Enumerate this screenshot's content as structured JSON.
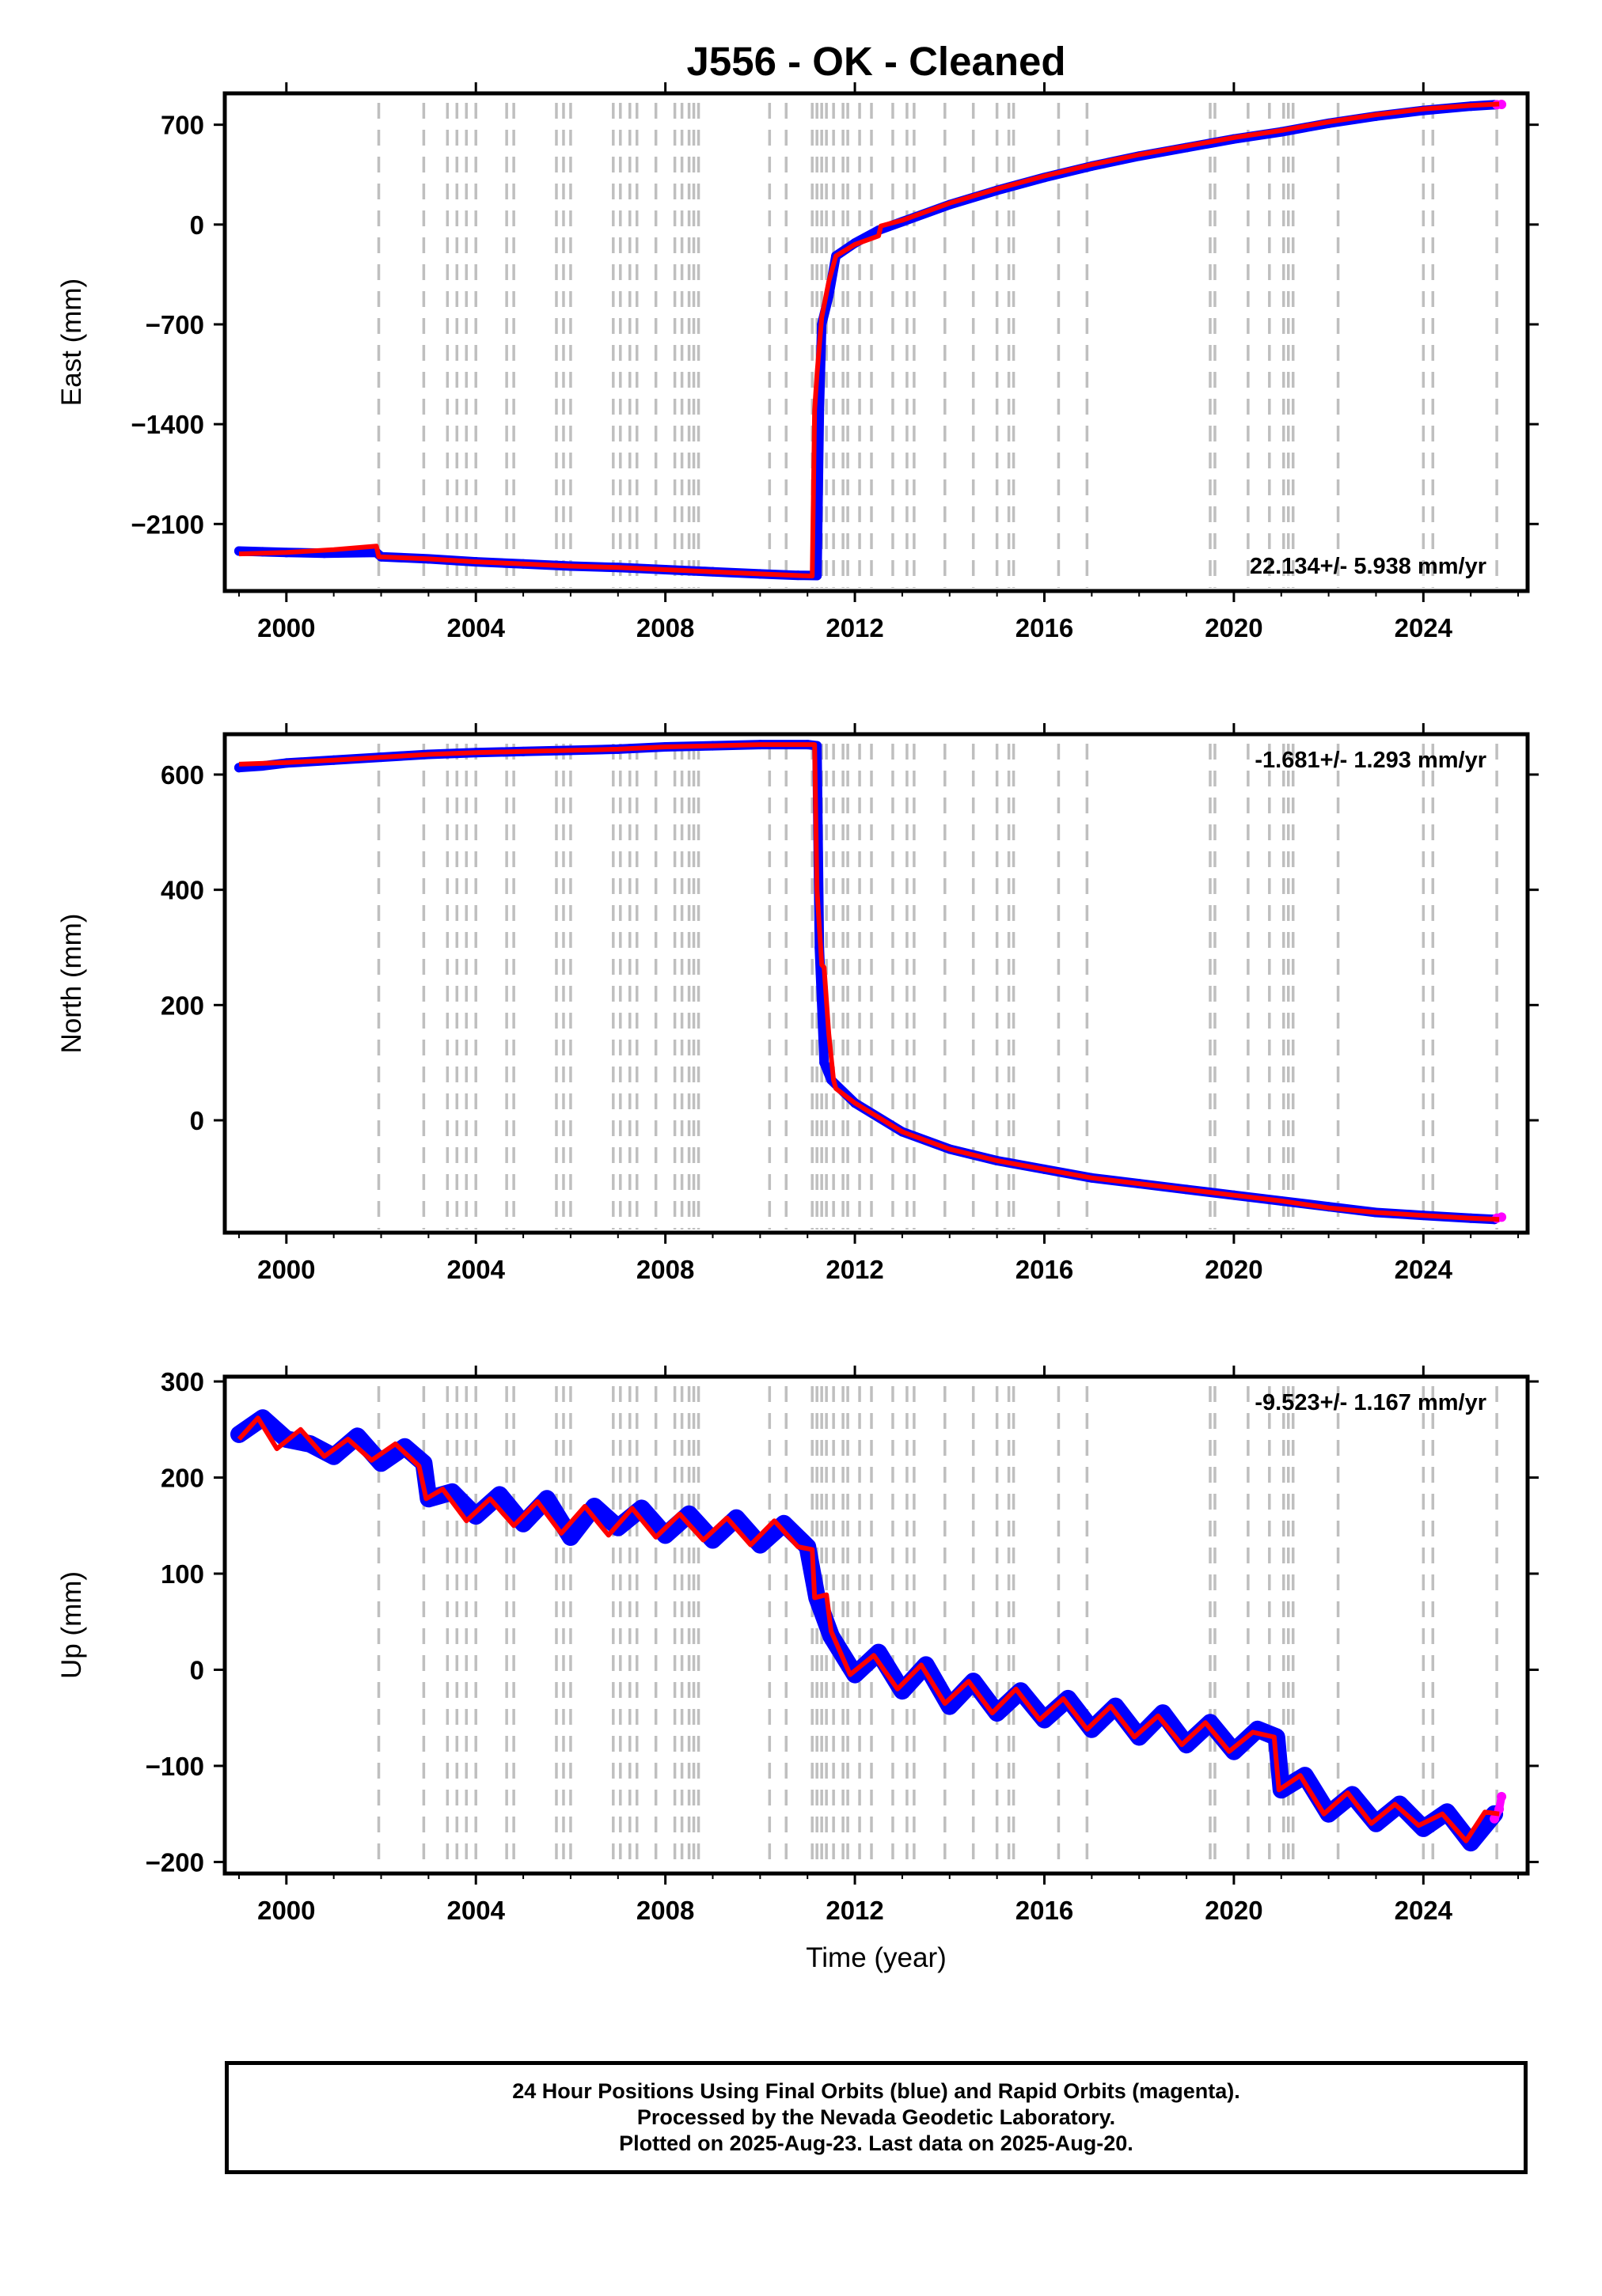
{
  "title": "J556  - OK - Cleaned",
  "footer": {
    "line1": "24 Hour Positions Using Final Orbits (blue) and Rapid Orbits (magenta).",
    "line2": "Processed by the Nevada Geodetic Laboratory.",
    "line3": "Plotted on 2025-Aug-23. Last data on 2025-Aug-20."
  },
  "colors": {
    "final_orbits": "#0000ff",
    "rapid_orbits": "#ff00ff",
    "model_fit": "#ff0000",
    "event_lines": "#bfbfbf",
    "frame": "#000000"
  },
  "chart_data": [
    {
      "type": "scatter",
      "ylabel": "East (mm)",
      "xlim": [
        1998.7,
        2026.2
      ],
      "ylim": [
        -2570,
        920
      ],
      "yticks": [
        700,
        0,
        -700,
        -1400,
        -2100
      ],
      "xticks": [
        2000,
        2004,
        2008,
        2012,
        2016,
        2020,
        2024
      ],
      "rate_label": "22.134+/- 5.938 mm/yr",
      "rate_position": "bottom-right",
      "series": [
        {
          "name": "Final Orbits",
          "color": "#0000ff",
          "x": [
            1999.0,
            1999.5,
            2000.0,
            2000.8,
            2001.9,
            2002.0,
            2003.0,
            2004.0,
            2005.0,
            2006.0,
            2007.0,
            2008.0,
            2009.0,
            2010.0,
            2010.8,
            2011.2,
            2011.25,
            2011.3,
            2011.45,
            2011.6,
            2012.0,
            2012.5,
            2013.0,
            2014.0,
            2015.0,
            2016.0,
            2017.0,
            2018.0,
            2019.0,
            2020.0,
            2021.0,
            2022.0,
            2023.0,
            2024.0,
            2025.0,
            2025.5
          ],
          "y": [
            -2290,
            -2295,
            -2300,
            -2305,
            -2300,
            -2330,
            -2345,
            -2365,
            -2380,
            -2395,
            -2405,
            -2420,
            -2435,
            -2450,
            -2460,
            -2462,
            -1300,
            -700,
            -500,
            -220,
            -130,
            -40,
            20,
            140,
            240,
            330,
            410,
            480,
            540,
            600,
            650,
            710,
            760,
            800,
            830,
            840
          ]
        },
        {
          "name": "Rapid Orbits",
          "color": "#ff00ff",
          "x": [
            2025.55,
            2025.65
          ],
          "y": [
            840,
            842
          ]
        },
        {
          "name": "Model",
          "color": "#ff0000",
          "x": [
            1999.0,
            2000.0,
            2001.0,
            2001.9,
            2001.95,
            2003.0,
            2004.0,
            2005.0,
            2006.0,
            2007.0,
            2008.0,
            2009.0,
            2010.0,
            2011.1,
            2011.15,
            2011.2,
            2011.3,
            2011.45,
            2011.6,
            2012.0,
            2012.5,
            2012.55,
            2013.0,
            2014.0,
            2015.0,
            2016.0,
            2017.0,
            2018.0,
            2019.0,
            2020.0,
            2021.0,
            2022.0,
            2023.0,
            2024.0,
            2025.0,
            2025.6
          ],
          "y": [
            -2310,
            -2300,
            -2280,
            -2255,
            -2330,
            -2345,
            -2365,
            -2380,
            -2395,
            -2405,
            -2420,
            -2435,
            -2450,
            -2465,
            -1300,
            -1050,
            -650,
            -400,
            -220,
            -140,
            -80,
            -10,
            30,
            150,
            250,
            340,
            420,
            490,
            550,
            610,
            660,
            720,
            770,
            810,
            835,
            845
          ]
        }
      ]
    },
    {
      "type": "scatter",
      "ylabel": "North (mm)",
      "xlim": [
        1998.7,
        2026.2
      ],
      "ylim": [
        -195,
        670
      ],
      "yticks": [
        600,
        400,
        200,
        0
      ],
      "xticks": [
        2000,
        2004,
        2008,
        2012,
        2016,
        2020,
        2024
      ],
      "rate_label": "-1.681+/- 1.293 mm/yr",
      "rate_position": "top-right",
      "series": [
        {
          "name": "Final Orbits",
          "color": "#0000ff",
          "x": [
            1999.0,
            1999.5,
            2000.0,
            2001.0,
            2002.0,
            2003.0,
            2004.0,
            2005.0,
            2006.0,
            2007.0,
            2008.0,
            2009.0,
            2010.0,
            2011.0,
            2011.2,
            2011.25,
            2011.35,
            2011.5,
            2012.0,
            2013.0,
            2014.0,
            2015.0,
            2016.0,
            2017.0,
            2018.0,
            2019.0,
            2020.0,
            2021.0,
            2022.0,
            2023.0,
            2024.0,
            2025.0,
            2025.5
          ],
          "y": [
            612,
            615,
            620,
            625,
            630,
            635,
            638,
            640,
            642,
            644,
            648,
            650,
            652,
            652,
            650,
            300,
            100,
            70,
            30,
            -20,
            -50,
            -70,
            -85,
            -100,
            -110,
            -120,
            -130,
            -140,
            -150,
            -160,
            -165,
            -170,
            -172
          ]
        },
        {
          "name": "Rapid Orbits",
          "color": "#ff00ff",
          "x": [
            2025.55,
            2025.65
          ],
          "y": [
            -170,
            -168
          ]
        },
        {
          "name": "Model",
          "color": "#ff0000",
          "x": [
            1999.0,
            2000.0,
            2001.0,
            2002.0,
            2003.0,
            2004.0,
            2005.0,
            2006.0,
            2007.0,
            2008.0,
            2009.0,
            2010.0,
            2011.15,
            2011.2,
            2011.3,
            2011.35,
            2011.45,
            2011.55,
            2011.6,
            2012.0,
            2012.5,
            2013.0,
            2014.0,
            2015.0,
            2016.0,
            2017.0,
            2018.0,
            2019.0,
            2020.0,
            2021.0,
            2022.0,
            2023.0,
            2024.0,
            2025.0,
            2025.6
          ],
          "y": [
            618,
            621,
            625,
            630,
            635,
            638,
            640,
            642,
            644,
            648,
            650,
            652,
            652,
            400,
            270,
            265,
            150,
            70,
            55,
            30,
            5,
            -20,
            -50,
            -70,
            -85,
            -100,
            -110,
            -120,
            -130,
            -140,
            -152,
            -160,
            -165,
            -170,
            -172
          ]
        }
      ]
    },
    {
      "type": "scatter",
      "ylabel": "Up (mm)",
      "xlabel": "Time (year)",
      "xlim": [
        1998.7,
        2026.2
      ],
      "ylim": [
        -212,
        305
      ],
      "yticks": [
        300,
        200,
        100,
        0,
        -100,
        -200
      ],
      "xticks": [
        2000,
        2004,
        2008,
        2012,
        2016,
        2020,
        2024
      ],
      "rate_label": "-9.523+/- 1.167 mm/yr",
      "rate_position": "top-right",
      "series": [
        {
          "name": "Final Orbits",
          "color": "#0000ff",
          "x": [
            1999.0,
            1999.5,
            2000.0,
            2000.5,
            2001.0,
            2001.5,
            2002.0,
            2002.5,
            2002.9,
            2003.0,
            2003.5,
            2004.0,
            2004.5,
            2005.0,
            2005.5,
            2006.0,
            2006.5,
            2007.0,
            2007.5,
            2008.0,
            2008.5,
            2009.0,
            2009.5,
            2010.0,
            2010.5,
            2011.0,
            2011.2,
            2011.5,
            2012.0,
            2012.5,
            2013.0,
            2013.5,
            2014.0,
            2014.5,
            2015.0,
            2015.5,
            2016.0,
            2016.5,
            2017.0,
            2017.5,
            2018.0,
            2018.5,
            2019.0,
            2019.5,
            2020.0,
            2020.5,
            2020.9,
            2021.0,
            2021.5,
            2022.0,
            2022.5,
            2023.0,
            2023.5,
            2024.0,
            2024.5,
            2025.0,
            2025.5
          ],
          "y": [
            245,
            262,
            240,
            235,
            222,
            243,
            215,
            232,
            215,
            178,
            185,
            160,
            182,
            152,
            178,
            138,
            170,
            148,
            168,
            140,
            162,
            135,
            158,
            130,
            152,
            128,
            75,
            35,
            -5,
            18,
            -22,
            5,
            -38,
            -12,
            -45,
            -22,
            -52,
            -30,
            -62,
            -38,
            -70,
            -45,
            -78,
            -55,
            -85,
            -62,
            -70,
            -125,
            -110,
            -150,
            -130,
            -160,
            -140,
            -165,
            -148,
            -180,
            -150
          ]
        },
        {
          "name": "Rapid Orbits",
          "color": "#ff00ff",
          "x": [
            2025.5,
            2025.6,
            2025.65
          ],
          "y": [
            -155,
            -145,
            -132
          ]
        },
        {
          "name": "Model",
          "color": "#ff0000",
          "x": [
            1999.0,
            1999.4,
            1999.8,
            2000.3,
            2000.8,
            2001.3,
            2001.8,
            2002.3,
            2002.8,
            2002.95,
            2003.3,
            2003.8,
            2004.3,
            2004.8,
            2005.3,
            2005.8,
            2006.3,
            2006.8,
            2007.3,
            2007.8,
            2008.3,
            2008.8,
            2009.3,
            2009.8,
            2010.3,
            2010.8,
            2011.1,
            2011.15,
            2011.4,
            2011.5,
            2011.9,
            2012.4,
            2012.9,
            2013.4,
            2013.9,
            2014.4,
            2014.9,
            2015.4,
            2015.9,
            2016.4,
            2016.9,
            2017.4,
            2017.9,
            2018.4,
            2018.9,
            2019.4,
            2019.9,
            2020.4,
            2020.85,
            2020.95,
            2021.4,
            2021.9,
            2022.4,
            2022.9,
            2023.4,
            2023.9,
            2024.4,
            2024.9,
            2025.3,
            2025.6
          ],
          "y": [
            240,
            262,
            230,
            250,
            222,
            240,
            218,
            235,
            212,
            178,
            188,
            155,
            178,
            150,
            175,
            142,
            170,
            140,
            168,
            138,
            162,
            135,
            158,
            130,
            155,
            128,
            125,
            75,
            78,
            40,
            -5,
            15,
            -20,
            5,
            -35,
            -12,
            -45,
            -20,
            -52,
            -30,
            -62,
            -38,
            -70,
            -48,
            -78,
            -55,
            -85,
            -65,
            -70,
            -125,
            -110,
            -150,
            -128,
            -160,
            -140,
            -162,
            -150,
            -178,
            -148,
            -150
          ]
        }
      ]
    }
  ],
  "event_lines_x": [
    2001.95,
    2002.9,
    2003.4,
    2003.6,
    2003.8,
    2004.0,
    2004.65,
    2004.8,
    2005.7,
    2005.85,
    2006.0,
    2006.9,
    2007.05,
    2007.25,
    2007.4,
    2007.8,
    2008.2,
    2008.35,
    2008.5,
    2008.6,
    2008.7,
    2010.2,
    2010.55,
    2011.1,
    2011.2,
    2011.3,
    2011.4,
    2011.55,
    2011.75,
    2011.85,
    2012.1,
    2012.35,
    2012.8,
    2013.1,
    2013.25,
    2013.9,
    2014.5,
    2015.0,
    2015.25,
    2015.35,
    2016.3,
    2016.9,
    2019.5,
    2019.6,
    2020.3,
    2020.75,
    2021.05,
    2021.15,
    2021.25,
    2022.2,
    2024.0,
    2024.2,
    2025.55
  ]
}
